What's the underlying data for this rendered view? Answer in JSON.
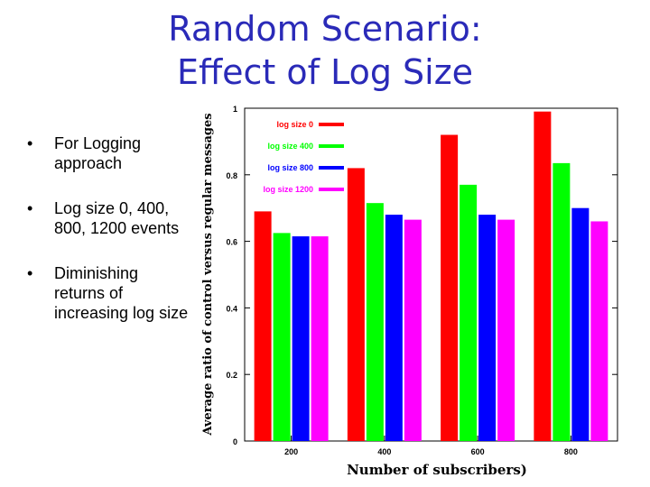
{
  "slide": {
    "title_line1": "Random Scenario:",
    "title_line2": "Effect of Log Size",
    "bullets": [
      "For Logging approach",
      "Log size 0, 400, 800, 1200 events",
      "Diminishing returns of increasing log size"
    ],
    "bullet_glyph": "•"
  },
  "chart_data": {
    "type": "bar",
    "title": "",
    "xlabel": "Number of subscribers)",
    "ylabel": "Average ratio of control versus regular messages",
    "categories": [
      "200",
      "400",
      "600",
      "800"
    ],
    "ylim": [
      0,
      1
    ],
    "yticks": [
      0,
      0.2,
      0.4,
      0.6,
      0.8,
      1
    ],
    "ytick_labels": [
      "0",
      "0.2",
      "0.4",
      "0.6",
      "0.8",
      "1"
    ],
    "grid": false,
    "legend_position": "top-right",
    "series": [
      {
        "name": "log size 0",
        "color": "#ff0000",
        "values": [
          0.69,
          0.82,
          0.92,
          0.99
        ]
      },
      {
        "name": "log size 400",
        "color": "#00ff00",
        "values": [
          0.625,
          0.715,
          0.77,
          0.835
        ]
      },
      {
        "name": "log size 800",
        "color": "#0000ff",
        "values": [
          0.615,
          0.68,
          0.68,
          0.7
        ]
      },
      {
        "name": "log size 1200",
        "color": "#ff00ff",
        "values": [
          0.615,
          0.665,
          0.665,
          0.66
        ]
      }
    ]
  }
}
